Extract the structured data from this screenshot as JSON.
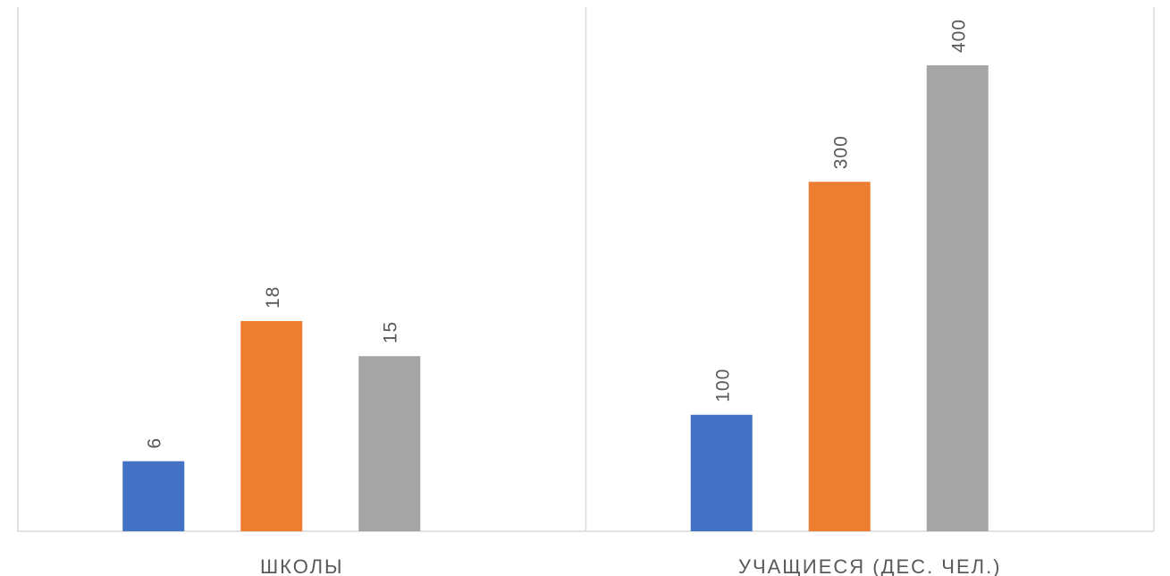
{
  "chart_data": {
    "type": "bar",
    "categories": [
      "ШКОЛЫ",
      "УЧАЩИЕСЯ (ДЕС. ЧЕЛ.)"
    ],
    "series": [
      {
        "values": [
          6,
          100
        ],
        "color": "#4472C4"
      },
      {
        "values": [
          18,
          300
        ],
        "color": "#ED7D31"
      },
      {
        "values": [
          15,
          400
        ],
        "color": "#A5A5A5"
      }
    ],
    "data_labels": [
      [
        "6",
        "100"
      ],
      [
        "18",
        "300"
      ],
      [
        "15",
        "400"
      ]
    ],
    "data_label_orientation": "vertical",
    "grid": false,
    "legend": "none",
    "axis_color": "#D9D9D9",
    "label_color": "#595959"
  }
}
